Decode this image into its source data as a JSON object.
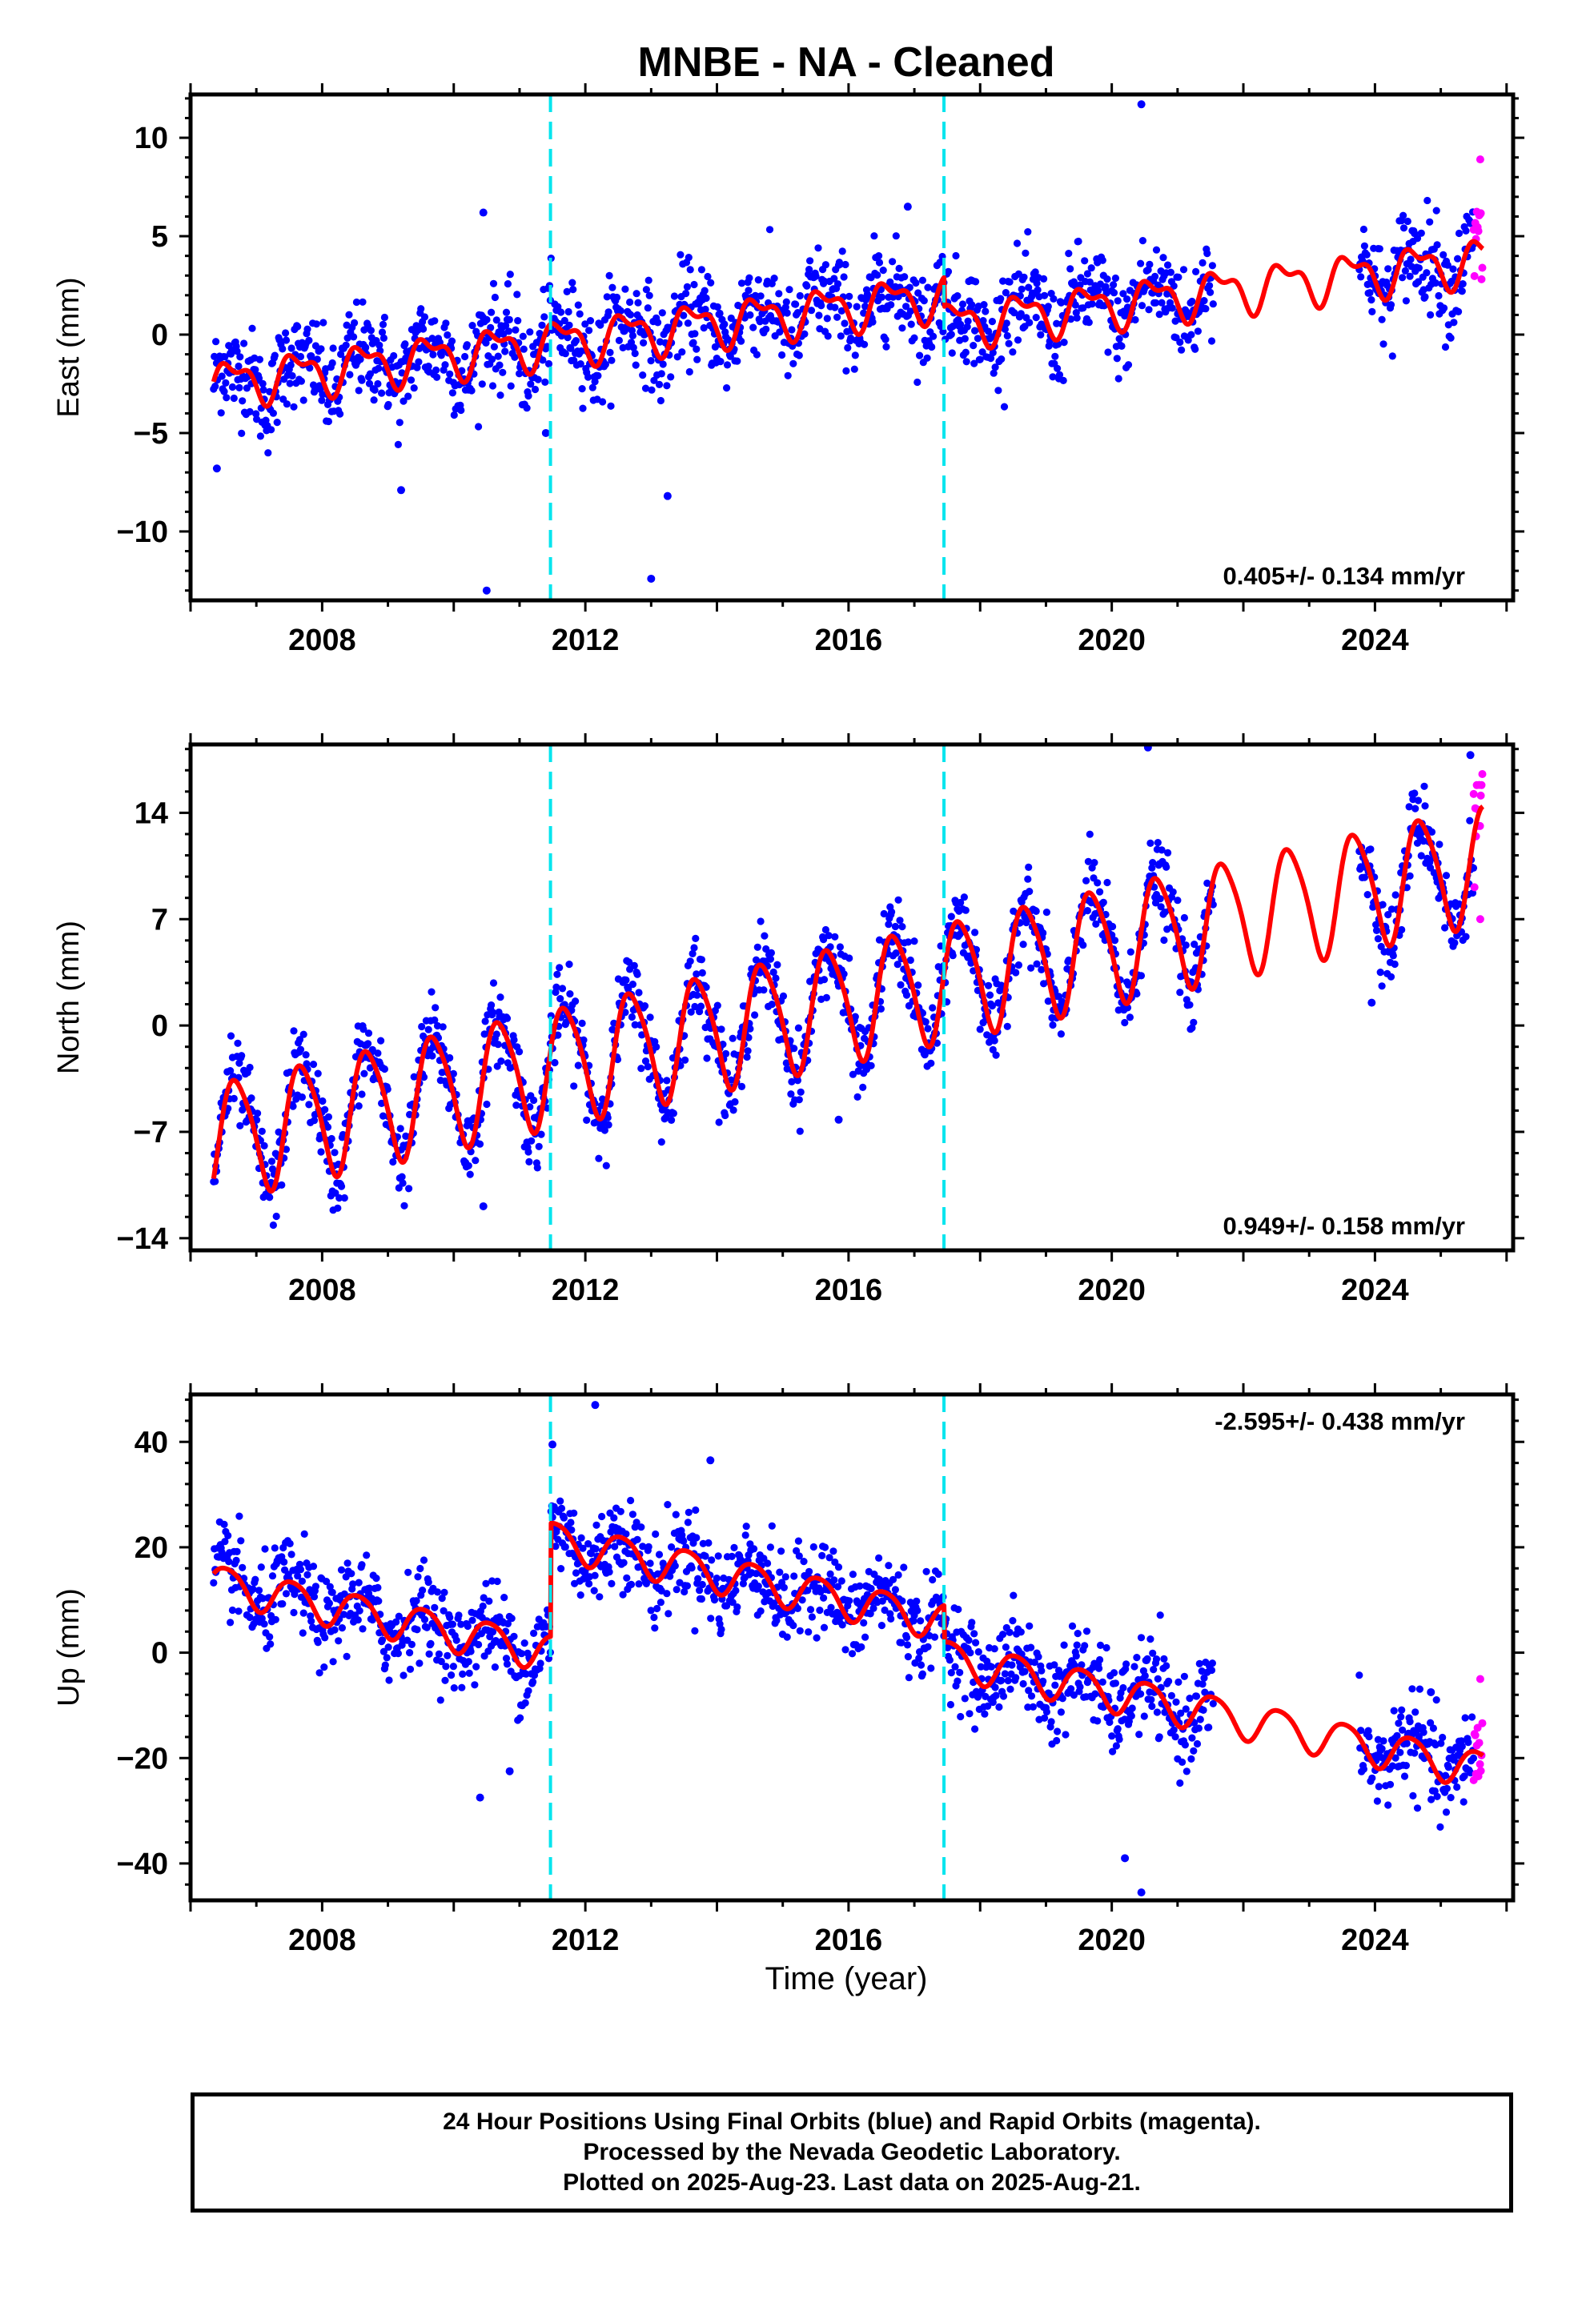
{
  "title": "MNBE  - NA - Cleaned",
  "xlabel": "Time (year)",
  "footer": {
    "line1": "24 Hour Positions Using Final Orbits (blue) and Rapid Orbits (magenta).",
    "line2": "Processed by the Nevada Geodetic Laboratory.",
    "line3": "Plotted on 2025-Aug-23. Last data on 2025-Aug-21."
  },
  "colors": {
    "final_orbits": "#0000ff",
    "rapid_orbits": "#ff00ff",
    "model": "#ff0000",
    "equipment_change": "#00e5ee",
    "frame": "#000000"
  },
  "chart_data": [
    {
      "type": "scatter",
      "component": "east",
      "ylabel": "East (mm)",
      "rate_label": "0.405+/- 0.134 mm/yr",
      "rate_position": "bottom-right",
      "xlim": [
        2006.0,
        2026.1
      ],
      "ylim": [
        -13.5,
        12.2
      ],
      "xticks": [
        2008,
        2012,
        2016,
        2020,
        2024
      ],
      "xtick_labels": [
        "2008",
        "2012",
        "2016",
        "2020",
        "2024"
      ],
      "yticks": [
        -10,
        -5,
        0,
        5,
        10
      ],
      "ytick_labels": [
        "−10",
        "−5",
        "0",
        "5",
        "10"
      ],
      "grid": false,
      "data_start": 2006.35,
      "data_end": 2025.64,
      "rapid_start": 2025.5,
      "gap": [
        2021.55,
        2023.75
      ],
      "steps": [
        2011.47,
        2017.45
      ],
      "model": {
        "ref_year": 2006.35,
        "offset": -2.5,
        "rate": 0.405,
        "annual_amplitude": 1.0,
        "annual_phase": 0.62,
        "semiannual_amplitude": 0.5,
        "semiannual_phase": 0.2,
        "step_offsets": [
          0.0,
          -1.5
        ]
      },
      "scatter": 1.2,
      "outliers": [
        {
          "x": 2006.4,
          "y": -6.8
        },
        {
          "x": 2009.2,
          "y": -7.9
        },
        {
          "x": 2010.45,
          "y": 6.2
        },
        {
          "x": 2010.5,
          "y": -13.0
        },
        {
          "x": 2011.4,
          "y": -5.0
        },
        {
          "x": 2013.0,
          "y": -12.4
        },
        {
          "x": 2013.25,
          "y": -8.2
        },
        {
          "x": 2016.9,
          "y": 6.5
        },
        {
          "x": 2020.45,
          "y": 11.7
        },
        {
          "x": 2025.6,
          "y": 8.9
        }
      ]
    },
    {
      "type": "scatter",
      "component": "north",
      "ylabel": "North (mm)",
      "rate_label": "0.949+/- 0.158 mm/yr",
      "rate_position": "bottom-right",
      "xlim": [
        2006.0,
        2026.1
      ],
      "ylim": [
        -14.8,
        18.5
      ],
      "xticks": [
        2008,
        2012,
        2016,
        2020,
        2024
      ],
      "xtick_labels": [
        "2008",
        "2012",
        "2016",
        "2020",
        "2024"
      ],
      "yticks": [
        -14,
        -7,
        0,
        7,
        14
      ],
      "ytick_labels": [
        "−14",
        "−7",
        "0",
        "7",
        "14"
      ],
      "grid": false,
      "data_start": 2006.35,
      "data_end": 2025.64,
      "rapid_start": 2025.5,
      "gap": [
        2021.55,
        2023.75
      ],
      "steps": [
        2011.47,
        2017.45
      ],
      "model": {
        "ref_year": 2006.35,
        "offset": -7.5,
        "rate": 0.949,
        "annual_amplitude": 3.8,
        "annual_phase": 0.55,
        "semiannual_amplitude": 0.6,
        "semiannual_phase": 0.1,
        "step_offsets": [
          0.0,
          0.0
        ]
      },
      "scatter": 1.3,
      "outliers": [
        {
          "x": 2010.45,
          "y": -11.9
        },
        {
          "x": 2015.85,
          "y": -6.2
        },
        {
          "x": 2020.55,
          "y": 18.3
        },
        {
          "x": 2023.95,
          "y": 1.5
        },
        {
          "x": 2025.45,
          "y": 17.8
        },
        {
          "x": 2025.6,
          "y": 7.0
        }
      ]
    },
    {
      "type": "scatter",
      "component": "up",
      "ylabel": "Up (mm)",
      "rate_label": "-2.595+/- 0.438 mm/yr",
      "rate_position": "top-right",
      "xlim": [
        2006.0,
        2026.1
      ],
      "ylim": [
        -47,
        49
      ],
      "xticks": [
        2008,
        2012,
        2016,
        2020,
        2024
      ],
      "xtick_labels": [
        "2008",
        "2012",
        "2016",
        "2020",
        "2024"
      ],
      "yticks": [
        -40,
        -20,
        0,
        20,
        40
      ],
      "ytick_labels": [
        "−40",
        "−20",
        "0",
        "20",
        "40"
      ],
      "grid": false,
      "data_start": 2006.35,
      "data_end": 2025.64,
      "rapid_start": 2025.5,
      "gap": [
        2021.55,
        2023.75
      ],
      "steps": [
        2011.47,
        2017.45
      ],
      "model": {
        "ref_year": 2006.35,
        "offset": 13.4,
        "rate": -2.595,
        "annual_amplitude": 3.5,
        "annual_phase": 0.7,
        "semiannual_amplitude": 0.5,
        "semiannual_phase": 0.3,
        "step_offsets": [
          21.5,
          -7.0
        ]
      },
      "scatter": 4.2,
      "outliers": [
        {
          "x": 2010.4,
          "y": -27.5
        },
        {
          "x": 2010.85,
          "y": -22.5
        },
        {
          "x": 2011.5,
          "y": 39.5
        },
        {
          "x": 2012.15,
          "y": 47.0
        },
        {
          "x": 2013.9,
          "y": 36.5
        },
        {
          "x": 2020.2,
          "y": -39.0
        },
        {
          "x": 2020.45,
          "y": -45.5
        },
        {
          "x": 2024.85,
          "y": -7.5
        },
        {
          "x": 2025.6,
          "y": -5.0
        }
      ]
    }
  ]
}
